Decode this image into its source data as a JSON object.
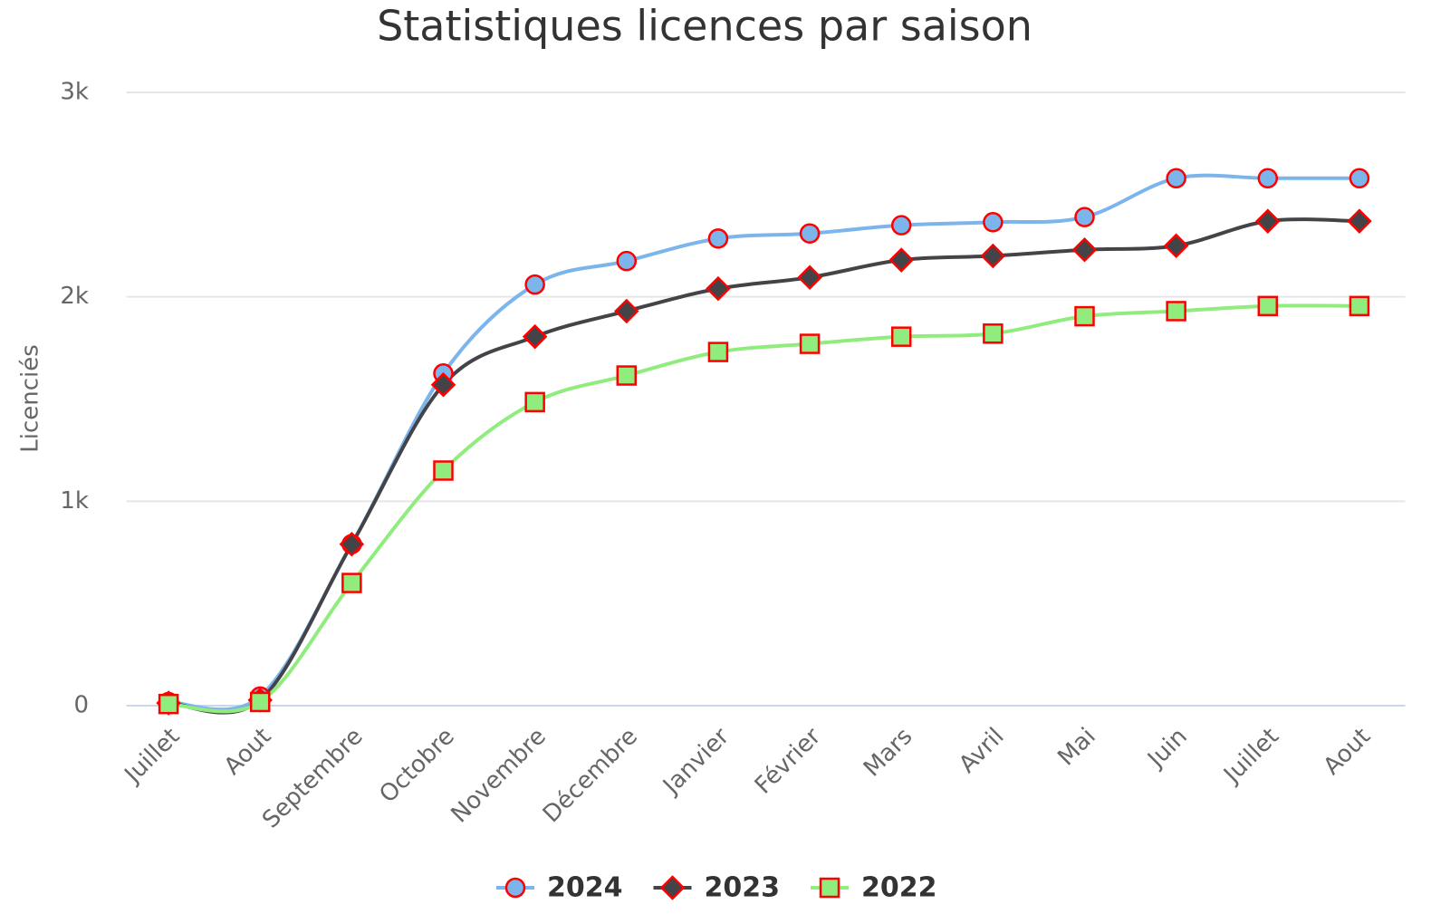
{
  "chart_data": {
    "type": "line",
    "title": "Statistiques licences par saison",
    "y_label": "Licenciés",
    "categories": [
      "Juillet",
      "Aout",
      "Septembre",
      "Octobre",
      "Novembre",
      "Décembre",
      "Janvier",
      "Février",
      "Mars",
      "Avril",
      "Mai",
      "Juin",
      "Juillet",
      "Aout"
    ],
    "series": [
      {
        "name": "2024",
        "color": "#7cb5ec",
        "marker": "circle",
        "values": [
          18,
          45,
          790,
          1625,
          2060,
          2175,
          2285,
          2310,
          2350,
          2365,
          2390,
          2580,
          2580,
          2580
        ]
      },
      {
        "name": "2023",
        "color": "#434348",
        "marker": "diamond",
        "values": [
          13,
          27,
          790,
          1570,
          1805,
          1930,
          2040,
          2095,
          2180,
          2200,
          2230,
          2250,
          2370,
          2370
        ]
      },
      {
        "name": "2022",
        "color": "#90ed7d",
        "marker": "square",
        "values": [
          8,
          18,
          600,
          1150,
          1485,
          1615,
          1730,
          1770,
          1805,
          1820,
          1905,
          1930,
          1955,
          1955
        ]
      }
    ],
    "marker_line_color": "#ff0000",
    "ylim": [
      0,
      3000
    ],
    "yticks": [
      0,
      {
        "value": 1000,
        "label": "1k"
      },
      {
        "value": 2000,
        "label": "2k"
      },
      {
        "value": 3000,
        "label": "3k"
      }
    ],
    "grid": true,
    "legend": "bottom"
  }
}
